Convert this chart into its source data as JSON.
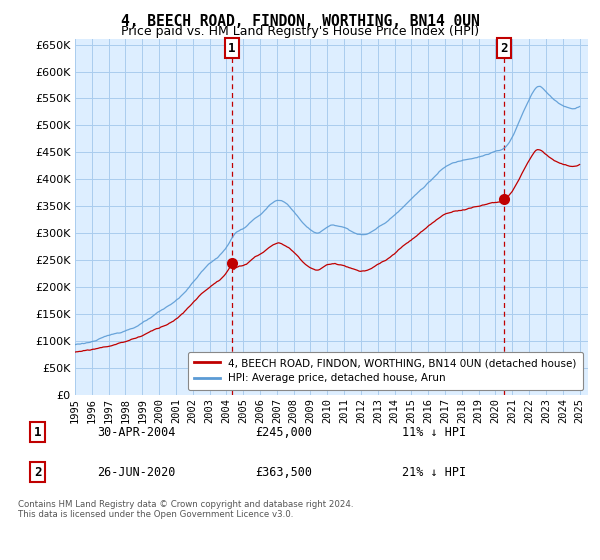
{
  "title": "4, BEECH ROAD, FINDON, WORTHING, BN14 0UN",
  "subtitle": "Price paid vs. HM Land Registry's House Price Index (HPI)",
  "ylim": [
    0,
    660000
  ],
  "yticks": [
    0,
    50000,
    100000,
    150000,
    200000,
    250000,
    300000,
    350000,
    400000,
    450000,
    500000,
    550000,
    600000,
    650000
  ],
  "xlim_start": 1995.0,
  "xlim_end": 2025.5,
  "sale1_x": 2004.33,
  "sale1_y": 245000,
  "sale2_x": 2020.5,
  "sale2_y": 363500,
  "sale1_label": "1",
  "sale2_label": "2",
  "sale1_date": "30-APR-2004",
  "sale1_price": "£245,000",
  "sale1_hpi": "11% ↓ HPI",
  "sale2_date": "26-JUN-2020",
  "sale2_price": "£363,500",
  "sale2_hpi": "21% ↓ HPI",
  "legend1": "4, BEECH ROAD, FINDON, WORTHING, BN14 0UN (detached house)",
  "legend2": "HPI: Average price, detached house, Arun",
  "hpi_color": "#5b9bd5",
  "price_color": "#c00000",
  "marker_color": "#c00000",
  "vline_color": "#c00000",
  "background_color": "#ffffff",
  "plot_bg_color": "#ddeeff",
  "grid_color": "#aaccee",
  "footnote": "Contains HM Land Registry data © Crown copyright and database right 2024.\nThis data is licensed under the Open Government Licence v3.0."
}
